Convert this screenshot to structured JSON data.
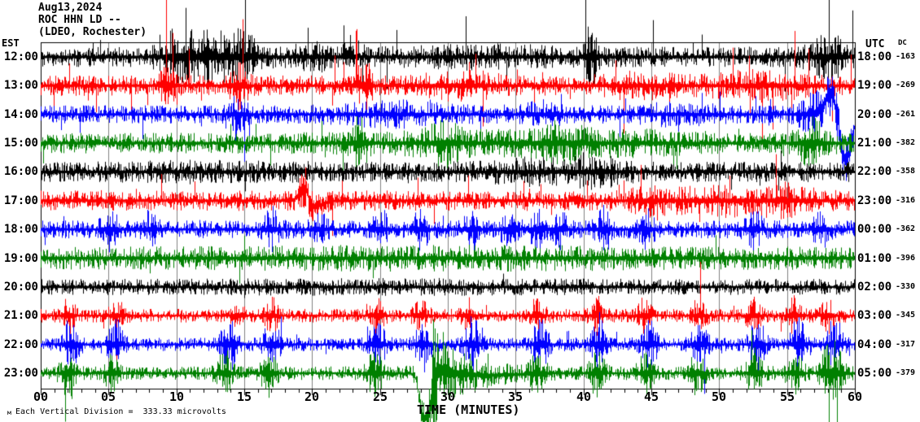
{
  "header": {
    "date": "Aug13,2024",
    "station": "ROC HHN LD --",
    "network": "(LDEO, Rochester)"
  },
  "axes": {
    "left_timezone": "EST",
    "right_timezone": "UTC",
    "dc_header": "DC",
    "x_title": "TIME (MINUTES)",
    "x_ticks": [
      "00",
      "05",
      "10",
      "15",
      "20",
      "25",
      "30",
      "35",
      "40",
      "45",
      "50",
      "55",
      "60"
    ]
  },
  "footer": {
    "mark": "м",
    "scale_text": "Each Vertical Division =  333.33 microvolts"
  },
  "colors": {
    "black": "#000000",
    "red": "#ff0000",
    "blue": "#0000ff",
    "green": "#008000",
    "grid": "#808080",
    "frame": "#000000"
  },
  "chart_data": {
    "type": "line",
    "title": "ROC HHN LD -- (LDEO, Rochester) Aug13,2024 helicorder",
    "xlabel": "TIME (MINUTES)",
    "x_range_minutes": [
      0,
      60
    ],
    "minutes_per_row": 60,
    "grid_interval_minutes": 5,
    "vertical_division_microvolts": 333.33,
    "rows": [
      {
        "est": "12:00",
        "utc": "18:00",
        "dc": "-163",
        "color": "black",
        "base": 9,
        "seed": 101,
        "spikeP": 0.055,
        "spikeMag": 3.2,
        "upBias": 0.78,
        "events": [
          {
            "m": 10,
            "w": 0.8,
            "amp": 14
          },
          {
            "m": 12.5,
            "w": 1.8,
            "amp": 16
          },
          {
            "m": 15,
            "w": 0.8,
            "amp": 10
          },
          {
            "m": 20.5,
            "w": 1.5,
            "amp": 5
          },
          {
            "m": 33,
            "w": 4,
            "amp": 3
          },
          {
            "m": 40.5,
            "w": 0.35,
            "amp": 22
          },
          {
            "m": 58,
            "w": 0.9,
            "amp": 14
          }
        ]
      },
      {
        "est": "13:00",
        "utc": "19:00",
        "dc": "-269",
        "color": "red",
        "base": 9,
        "seed": 202,
        "spikeP": 0.06,
        "spikeMag": 3.4,
        "upBias": 0.6,
        "events": [
          {
            "m": 9.3,
            "w": 0.3,
            "amp": 22
          },
          {
            "m": 14.6,
            "w": 0.4,
            "amp": 15
          },
          {
            "m": 23.8,
            "w": 0.35,
            "amp": 20
          },
          {
            "m": 31,
            "w": 2,
            "amp": 6
          },
          {
            "m": 44,
            "w": 2,
            "amp": 5
          },
          {
            "m": 53,
            "w": 2.5,
            "amp": 6
          }
        ]
      },
      {
        "est": "14:00",
        "utc": "20:00",
        "dc": "-261",
        "color": "blue",
        "base": 8,
        "seed": 303,
        "spikeP": 0.03,
        "spikeMag": 2.6,
        "upBias": 0.5,
        "events": [
          {
            "m": 14.5,
            "w": 0.5,
            "amp": 11
          },
          {
            "m": 26,
            "w": 3,
            "amp": 5
          },
          {
            "m": 37,
            "w": 1,
            "amp": 6
          },
          {
            "m": 47,
            "w": 2,
            "amp": 4
          },
          {
            "m": 57,
            "w": 0.8,
            "amp": 12
          },
          {
            "m": 58.2,
            "w": 0.45,
            "amp": 14,
            "off": -26
          },
          {
            "m": 59.3,
            "w": 0.4,
            "amp": 12,
            "off": 58
          }
        ]
      },
      {
        "est": "15:00",
        "utc": "21:00",
        "dc": "-382",
        "color": "green",
        "base": 9,
        "seed": 404,
        "spikeP": 0.03,
        "spikeMag": 2.4,
        "upBias": 0.5,
        "events": [
          {
            "m": 23.5,
            "w": 0.4,
            "amp": 15
          },
          {
            "m": 29.7,
            "w": 0.7,
            "amp": 11
          },
          {
            "m": 31,
            "w": 6,
            "amp": 4
          },
          {
            "m": 38,
            "w": 1.5,
            "amp": 9
          },
          {
            "m": 44,
            "w": 3,
            "amp": 4
          },
          {
            "m": 56.8,
            "w": 0.8,
            "amp": 15
          }
        ]
      },
      {
        "est": "16:00",
        "utc": "22:00",
        "dc": "-358",
        "color": "black",
        "base": 9,
        "seed": 505,
        "spikeP": 0.02,
        "spikeMag": 2.0,
        "upBias": 0.5,
        "events": [
          {
            "m": 12,
            "w": 4,
            "amp": 2
          },
          {
            "m": 37,
            "w": 3,
            "amp": 5
          },
          {
            "m": 41,
            "w": 1,
            "amp": 7
          }
        ]
      },
      {
        "est": "17:00",
        "utc": "23:00",
        "dc": "-316",
        "color": "red",
        "base": 9,
        "seed": 606,
        "spikeP": 0.045,
        "spikeMag": 2.6,
        "upBias": 0.55,
        "events": [
          {
            "m": 19.35,
            "w": 0.3,
            "amp": 10,
            "off": -20
          },
          {
            "m": 20.2,
            "w": 0.55,
            "amp": 5,
            "off": 7
          },
          {
            "m": 45,
            "w": 1,
            "amp": 6
          },
          {
            "m": 50,
            "w": 2.5,
            "amp": 7
          },
          {
            "m": 55,
            "w": 1.5,
            "amp": 7
          }
        ]
      },
      {
        "est": "18:00",
        "utc": "00:00",
        "dc": "-362",
        "color": "blue",
        "base": 8,
        "seed": 707,
        "spikeP": 0.02,
        "spikeMag": 2.2,
        "upBias": 0.5,
        "events": [
          {
            "m": 5,
            "w": 0.4,
            "amp": 13
          },
          {
            "m": 8,
            "w": 0.4,
            "amp": 10
          },
          {
            "m": 17,
            "w": 0.4,
            "amp": 13
          },
          {
            "m": 20.5,
            "w": 0.4,
            "amp": 11
          },
          {
            "m": 25,
            "w": 0.4,
            "amp": 13
          },
          {
            "m": 28,
            "w": 0.4,
            "amp": 12
          },
          {
            "m": 31.8,
            "w": 0.4,
            "amp": 14
          },
          {
            "m": 34.5,
            "w": 0.4,
            "amp": 12
          },
          {
            "m": 36.6,
            "w": 0.4,
            "amp": 13
          },
          {
            "m": 38.2,
            "w": 0.4,
            "amp": 12
          },
          {
            "m": 41.5,
            "w": 0.4,
            "amp": 14
          },
          {
            "m": 44.6,
            "w": 0.4,
            "amp": 12
          },
          {
            "m": 52.5,
            "w": 0.4,
            "amp": 13
          },
          {
            "m": 57.5,
            "w": 0.4,
            "amp": 12
          }
        ]
      },
      {
        "est": "19:00",
        "utc": "01:00",
        "dc": "-396",
        "color": "green",
        "base": 10,
        "seed": 808,
        "spikeP": 0.02,
        "spikeMag": 2.0,
        "upBias": 0.5,
        "events": [
          {
            "m": 30,
            "w": 12,
            "amp": 2
          }
        ]
      },
      {
        "est": "20:00",
        "utc": "02:00",
        "dc": "-330",
        "color": "black",
        "base": 7,
        "seed": 909,
        "spikeP": 0.015,
        "spikeMag": 1.8,
        "upBias": 0.5,
        "events": [
          {
            "m": 25,
            "w": 10,
            "amp": 1
          }
        ]
      },
      {
        "est": "21:00",
        "utc": "03:00",
        "dc": "-345",
        "color": "red",
        "base": 6,
        "seed": 111,
        "spikeP": 0.02,
        "spikeMag": 2.0,
        "upBias": 0.5,
        "events": [
          {
            "m": 2,
            "w": 0.35,
            "amp": 13
          },
          {
            "m": 5.5,
            "w": 0.35,
            "amp": 13
          },
          {
            "m": 14.5,
            "w": 0.35,
            "amp": 13
          },
          {
            "m": 17,
            "w": 0.35,
            "amp": 12
          },
          {
            "m": 24.8,
            "w": 0.35,
            "amp": 13
          },
          {
            "m": 28,
            "w": 0.35,
            "amp": 12
          },
          {
            "m": 31.5,
            "w": 0.35,
            "amp": 13
          },
          {
            "m": 36.6,
            "w": 0.35,
            "amp": 13
          },
          {
            "m": 41,
            "w": 0.35,
            "amp": 12
          },
          {
            "m": 44.5,
            "w": 0.35,
            "amp": 13
          },
          {
            "m": 48.5,
            "w": 0.35,
            "amp": 12
          },
          {
            "m": 52.5,
            "w": 0.35,
            "amp": 13
          },
          {
            "m": 55.5,
            "w": 0.35,
            "amp": 12
          },
          {
            "m": 58,
            "w": 0.35,
            "amp": 13
          }
        ]
      },
      {
        "est": "22:00",
        "utc": "04:00",
        "dc": "-317",
        "color": "blue",
        "base": 6,
        "seed": 222,
        "spikeP": 0.025,
        "spikeMag": 2.2,
        "upBias": 0.5,
        "events": [
          {
            "m": 2.2,
            "w": 0.4,
            "amp": 20
          },
          {
            "m": 5.5,
            "w": 0.4,
            "amp": 18
          },
          {
            "m": 13.8,
            "w": 0.4,
            "amp": 20
          },
          {
            "m": 17,
            "w": 0.4,
            "amp": 18
          },
          {
            "m": 24.8,
            "w": 0.4,
            "amp": 20
          },
          {
            "m": 28.2,
            "w": 0.4,
            "amp": 19
          },
          {
            "m": 31.8,
            "w": 0.4,
            "amp": 20
          },
          {
            "m": 36.8,
            "w": 0.4,
            "amp": 19
          },
          {
            "m": 41.2,
            "w": 0.4,
            "amp": 20
          },
          {
            "m": 44.8,
            "w": 0.4,
            "amp": 19
          },
          {
            "m": 48.5,
            "w": 0.4,
            "amp": 18
          },
          {
            "m": 52.8,
            "w": 0.4,
            "amp": 20
          },
          {
            "m": 55.8,
            "w": 0.4,
            "amp": 19
          },
          {
            "m": 58.5,
            "w": 0.4,
            "amp": 20
          }
        ]
      },
      {
        "est": "23:00",
        "utc": "05:00",
        "dc": "-379",
        "color": "green",
        "base": 6,
        "seed": 333,
        "spikeP": 0.03,
        "spikeMag": 2.0,
        "upBias": 0.5,
        "events": [
          {
            "m": 2,
            "w": 0.4,
            "amp": 17
          },
          {
            "m": 5.3,
            "w": 0.4,
            "amp": 16
          },
          {
            "m": 13.5,
            "w": 0.4,
            "amp": 17
          },
          {
            "m": 16.8,
            "w": 0.4,
            "amp": 16
          },
          {
            "m": 24.6,
            "w": 0.4,
            "amp": 17
          },
          {
            "m": 28.1,
            "w": 0.25,
            "amp": 4,
            "off": 45
          },
          {
            "m": 28.6,
            "w": 0.25,
            "amp": 4,
            "off": 45
          },
          {
            "m": 29.0,
            "w": 0.25,
            "amp": 42
          },
          {
            "m": 29.6,
            "w": 0.5,
            "amp": 18,
            "off": -4
          },
          {
            "m": 30.5,
            "w": 1.2,
            "amp": 10,
            "off": -2
          },
          {
            "m": 32,
            "w": 2.5,
            "amp": 6,
            "off": 3
          },
          {
            "m": 36.6,
            "w": 0.4,
            "amp": 16
          },
          {
            "m": 41,
            "w": 0.4,
            "amp": 17
          },
          {
            "m": 44.6,
            "w": 0.4,
            "amp": 16
          },
          {
            "m": 48.4,
            "w": 0.4,
            "amp": 16
          },
          {
            "m": 52.6,
            "w": 0.4,
            "amp": 17
          },
          {
            "m": 55.6,
            "w": 0.4,
            "amp": 16
          },
          {
            "m": 58.3,
            "w": 0.5,
            "amp": 30
          }
        ]
      }
    ]
  }
}
